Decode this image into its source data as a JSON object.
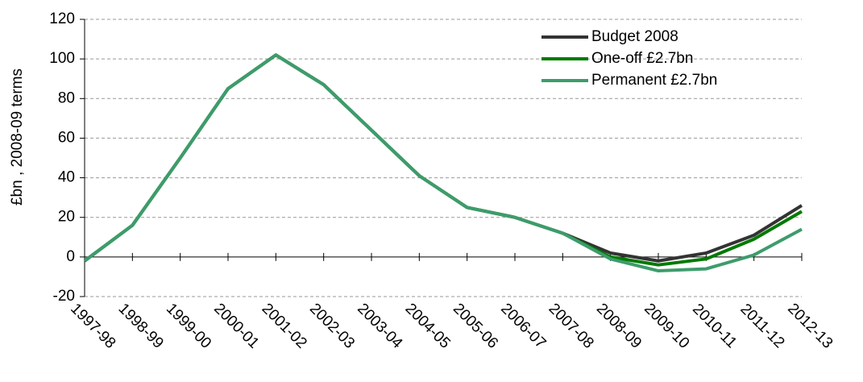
{
  "chart_data": {
    "type": "line",
    "y_label": "£bn , 2008-09 terms",
    "categories": [
      "1997-98",
      "1998-99",
      "1999-00",
      "2000-01",
      "2001-02",
      "2002-03",
      "2003-04",
      "2004-05",
      "2005-06",
      "2006-07",
      "2007-08",
      "2008-09",
      "2009-10",
      "2010-11",
      "2011-12",
      "2012-13"
    ],
    "series": [
      {
        "name": "Budget 2008",
        "color": "#333333",
        "values": [
          -2,
          16,
          50,
          85,
          102,
          87,
          64,
          41,
          25,
          20,
          12,
          2,
          -2,
          2,
          11,
          26
        ]
      },
      {
        "name": "One-off £2.7bn",
        "color": "#007a00",
        "values": [
          -2,
          16,
          50,
          85,
          102,
          87,
          64,
          41,
          25,
          20,
          12,
          0,
          -4,
          -1,
          9,
          23
        ]
      },
      {
        "name": "Permanent £2.7bn",
        "color": "#3d9c6c",
        "values": [
          -2,
          16,
          50,
          85,
          102,
          87,
          64,
          41,
          25,
          20,
          12,
          -1,
          -7,
          -6,
          1,
          14
        ]
      }
    ],
    "ylim": [
      -20,
      120
    ],
    "yticks": [
      -20,
      0,
      20,
      40,
      60,
      80,
      100,
      120
    ],
    "grid": true,
    "legend": "top-right"
  }
}
